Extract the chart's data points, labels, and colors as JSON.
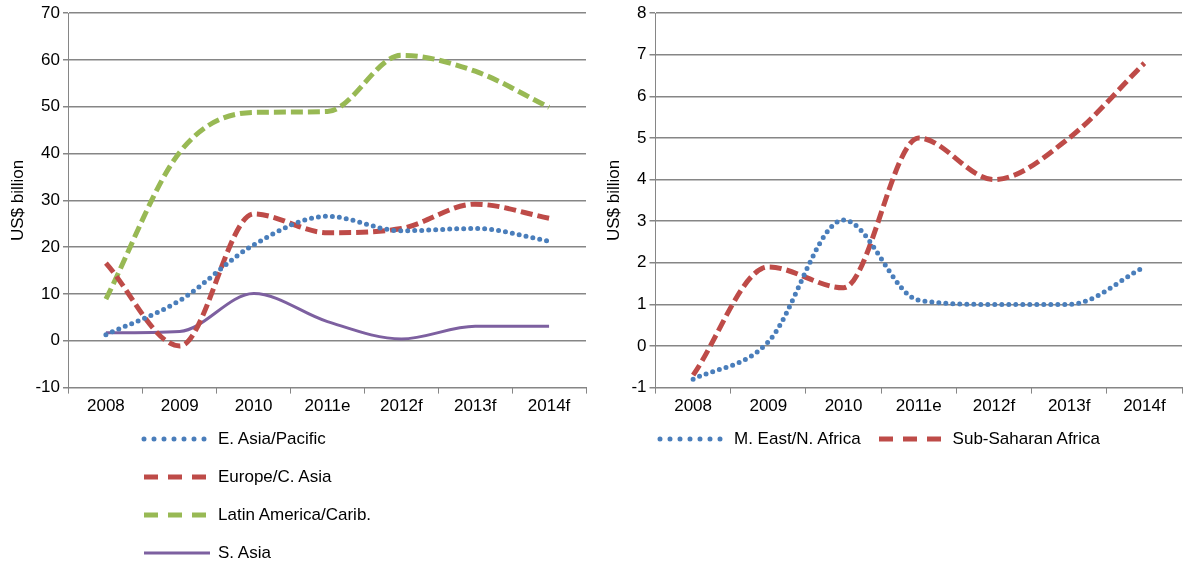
{
  "chart_data": [
    {
      "type": "line",
      "ylabel": "US$ billion",
      "categories": [
        "2008",
        "2009",
        "2010",
        "2011e",
        "2012f",
        "2013f",
        "2014f"
      ],
      "ylim": [
        -10,
        70
      ],
      "yticks": [
        -10,
        0,
        10,
        20,
        30,
        40,
        50,
        60,
        70
      ],
      "grid": "y",
      "legend": "bottom",
      "series": [
        {
          "name": "E. Asia/Pacific",
          "color": "#4a7ebb",
          "line_style": "dotted",
          "values": [
            1.3,
            8.6,
            20.5,
            26.6,
            23.5,
            24,
            21.3
          ]
        },
        {
          "name": "Europe/C. Asia",
          "color": "#be4b48",
          "line_style": "dashed",
          "values": [
            16.6,
            -1.1,
            27.1,
            23.1,
            24,
            29.2,
            26.2
          ]
        },
        {
          "name": "Latin America/Carib.",
          "color": "#98b954",
          "line_style": "dashed",
          "values": [
            8.9,
            40.3,
            48.8,
            49,
            61,
            57.6,
            49.9
          ]
        },
        {
          "name": "S. Asia",
          "color": "#7d60a0",
          "line_style": "solid",
          "values": [
            1.7,
            2,
            10.1,
            4.1,
            0.4,
            3.1,
            3.1
          ]
        }
      ]
    },
    {
      "type": "line",
      "ylabel": "US$ billion",
      "categories": [
        "2008",
        "2009",
        "2010",
        "2011e",
        "2012f",
        "2013f",
        "2014f"
      ],
      "ylim": [
        -1,
        8
      ],
      "yticks": [
        -1,
        0,
        1,
        2,
        3,
        4,
        5,
        6,
        7,
        8
      ],
      "grid": "y",
      "legend": "bottom",
      "series": [
        {
          "name": "M. East/N. Africa",
          "color": "#4a7ebb",
          "line_style": "dotted",
          "values": [
            -0.8,
            0.1,
            3.03,
            1.1,
            1,
            1,
            1.9
          ]
        },
        {
          "name": "Sub-Saharan Africa",
          "color": "#be4b48",
          "line_style": "dashed",
          "values": [
            -0.7,
            1.9,
            1.4,
            5,
            4,
            5,
            6.8
          ]
        }
      ]
    }
  ]
}
